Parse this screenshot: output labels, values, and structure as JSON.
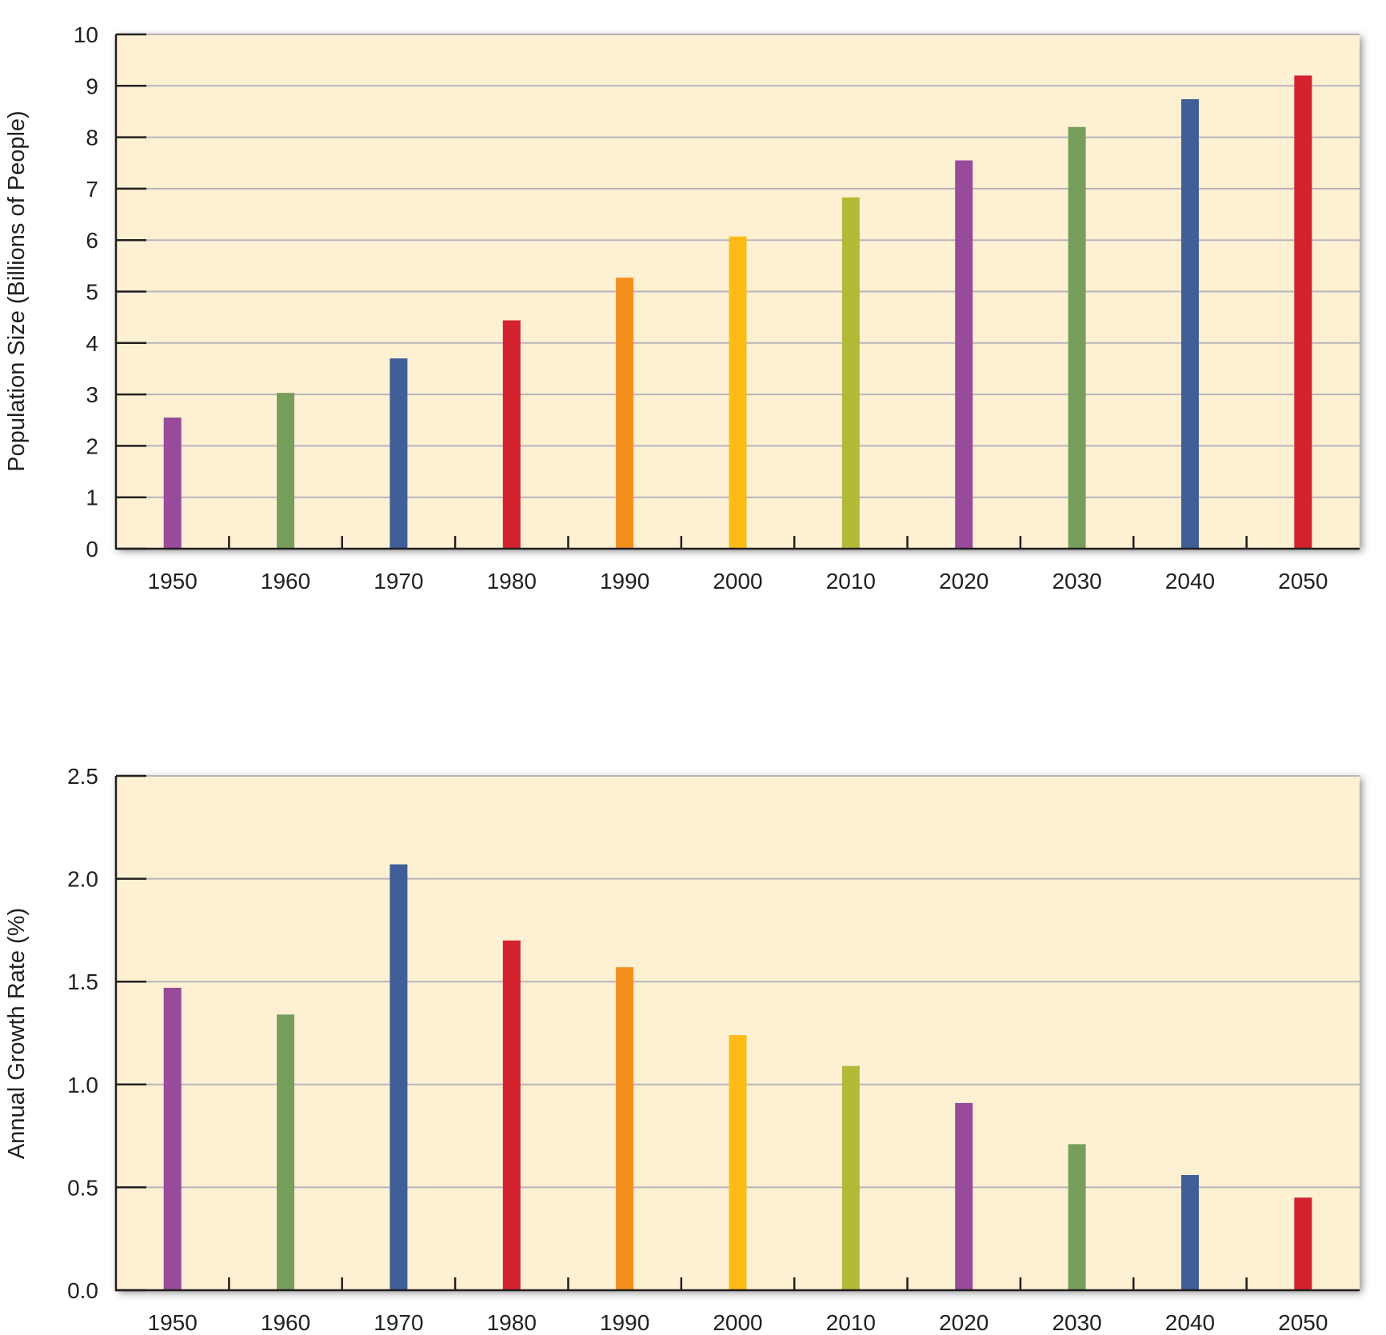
{
  "chart_data": [
    {
      "type": "bar",
      "categories": [
        "1950",
        "1960",
        "1970",
        "1980",
        "1990",
        "2000",
        "2010",
        "2020",
        "2030",
        "2040",
        "2050"
      ],
      "values": [
        2.55,
        3.03,
        3.7,
        4.44,
        5.27,
        6.07,
        6.83,
        7.55,
        8.2,
        8.74,
        9.2
      ],
      "ylabel": "Population Size (Billions of People)",
      "xlabel": "",
      "ylim": [
        0,
        10
      ],
      "yticks": [
        "0",
        "1",
        "2",
        "3",
        "4",
        "5",
        "6",
        "7",
        "8",
        "9",
        "10"
      ],
      "grid": true,
      "background": "#fdf0d3"
    },
    {
      "type": "bar",
      "categories": [
        "1950",
        "1960",
        "1970",
        "1980",
        "1990",
        "2000",
        "2010",
        "2020",
        "2030",
        "2040",
        "2050"
      ],
      "values": [
        1.47,
        1.34,
        2.07,
        1.7,
        1.57,
        1.24,
        1.09,
        0.91,
        0.71,
        0.56,
        0.45
      ],
      "ylabel": "Annual Growth Rate (%)",
      "xlabel": "",
      "ylim": [
        0,
        2.5
      ],
      "yticks": [
        "0.0",
        "0.5",
        "1.0",
        "1.5",
        "2.0",
        "2.5"
      ],
      "grid": true,
      "background": "#fdf0d3"
    }
  ],
  "bar_colors": [
    "#974b9a",
    "#779e5a",
    "#3e5f98",
    "#d3222e",
    "#f3901d",
    "#fdbb15",
    "#b1bb37",
    "#974b9a",
    "#779e5a",
    "#3e5f98",
    "#d3222e"
  ]
}
